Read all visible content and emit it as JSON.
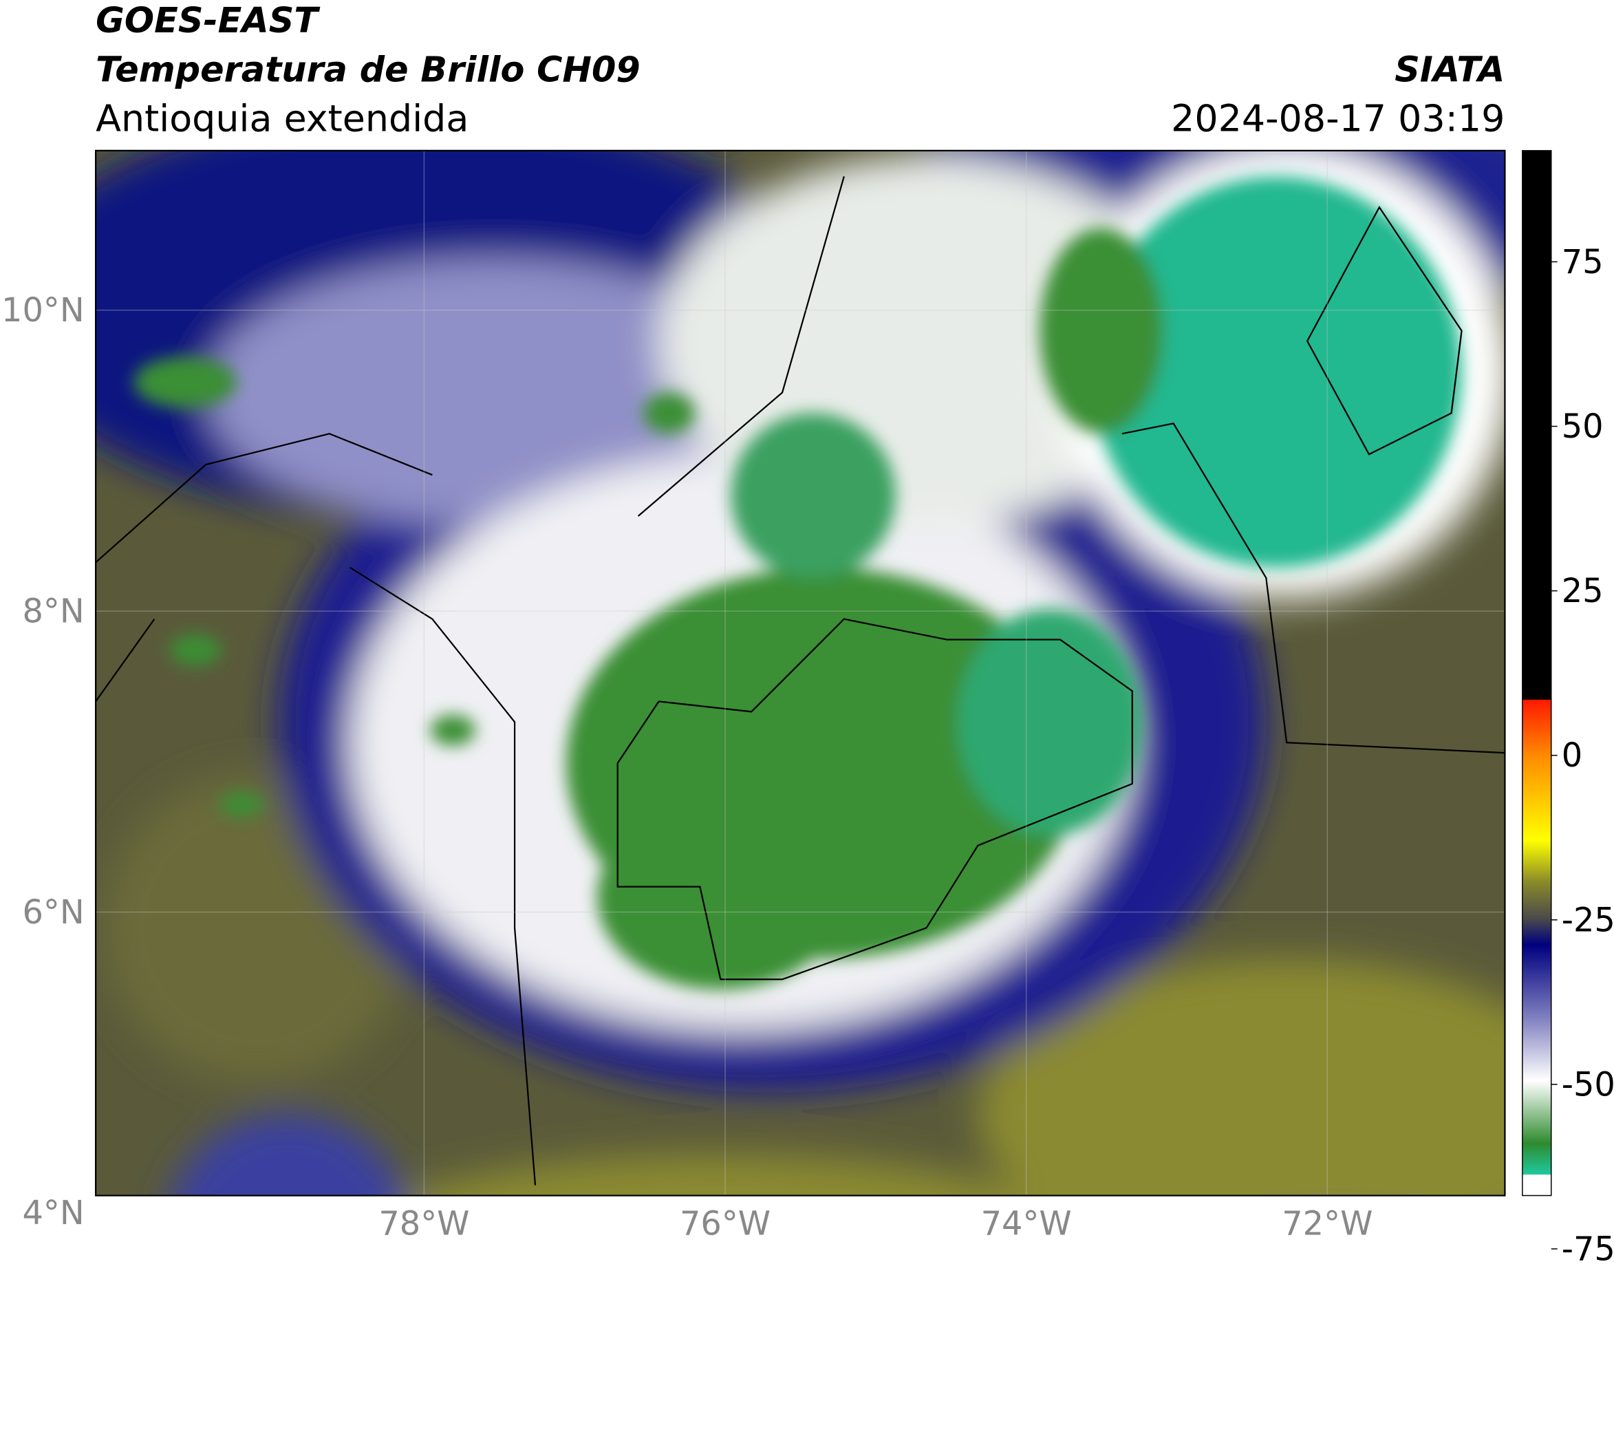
{
  "header": {
    "title": "GOES-EAST",
    "subtitle": "Temperatura de Brillo CH09",
    "region": "Antioquia extendida",
    "source": "SIATA",
    "timestamp": "2024-08-17 03:19"
  },
  "map": {
    "lat_labels": [
      "10°N",
      "8°N",
      "6°N",
      "4°N"
    ],
    "lon_labels": [
      "78°W",
      "76°W",
      "74°W",
      "72°W"
    ]
  },
  "colorbar": {
    "tick_labels": [
      75,
      50,
      25,
      0,
      -25,
      -50,
      -75
    ]
  }
}
